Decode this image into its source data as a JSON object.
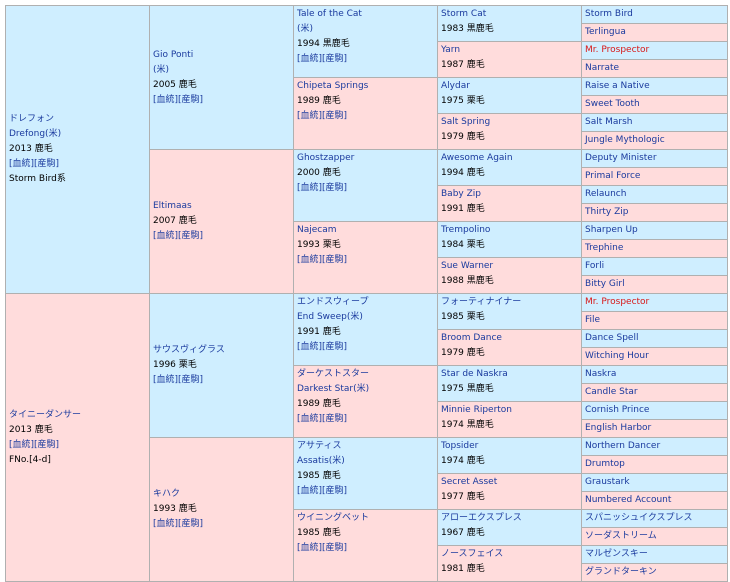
{
  "gen1": {
    "sire": {
      "name": "ドレフォン",
      "en": "Drefong(米)",
      "year": "2013 鹿毛",
      "links": [
        "[血統]",
        "[産駒]"
      ],
      "line": "Storm Bird系"
    },
    "dam": {
      "name": "タイニーダンサー",
      "year": "2013 鹿毛",
      "links": [
        "[血統]",
        "[産駒]"
      ],
      "line": "FNo.[4-d]"
    }
  },
  "gen2": [
    {
      "name": "Gio Ponti",
      "en": "(米)",
      "year": "2005 鹿毛",
      "links": [
        "[血統]",
        "[産駒]"
      ]
    },
    {
      "name": "Eltimaas",
      "year": "2007 鹿毛",
      "links": [
        "[血統]",
        "[産駒]"
      ]
    },
    {
      "name": "サウスヴィグラス",
      "year": "1996 栗毛",
      "links": [
        "[血統]",
        "[産駒]"
      ]
    },
    {
      "name": "キハク",
      "year": "1993 鹿毛",
      "links": [
        "[血統]",
        "[産駒]"
      ]
    }
  ],
  "gen3": [
    {
      "name": "Tale of the Cat",
      "en": "(米)",
      "year": "1994 黒鹿毛",
      "links": [
        "[血統]",
        "[産駒]"
      ]
    },
    {
      "name": "Chipeta Springs",
      "year": "1989 鹿毛",
      "links": [
        "[血統]",
        "[産駒]"
      ]
    },
    {
      "name": "Ghostzapper",
      "year": "2000 鹿毛",
      "links": [
        "[血統]",
        "[産駒]"
      ]
    },
    {
      "name": "Najecam",
      "year": "1993 栗毛",
      "links": [
        "[血統]",
        "[産駒]"
      ]
    },
    {
      "name": "エンドスウィープ",
      "en": "End Sweep(米)",
      "year": "1991 鹿毛",
      "links": [
        "[血統]",
        "[産駒]"
      ]
    },
    {
      "name": "ダーケストスター",
      "en": "Darkest Star(米)",
      "year": "1989 鹿毛",
      "links": [
        "[血統]",
        "[産駒]"
      ]
    },
    {
      "name": "アサティス",
      "en": "Assatis(米)",
      "year": "1985 鹿毛",
      "links": [
        "[血統]",
        "[産駒]"
      ]
    },
    {
      "name": "ウイニングベット",
      "year": "1985 鹿毛",
      "links": [
        "[血統]",
        "[産駒]"
      ]
    }
  ],
  "gen4": [
    {
      "name": "Storm Cat",
      "year": "1983 黒鹿毛"
    },
    {
      "name": "Yarn",
      "year": "1987 鹿毛"
    },
    {
      "name": "Alydar",
      "year": "1975 栗毛"
    },
    {
      "name": "Salt Spring",
      "year": "1979 鹿毛"
    },
    {
      "name": "Awesome Again",
      "year": "1994 鹿毛"
    },
    {
      "name": "Baby Zip",
      "year": "1991 鹿毛"
    },
    {
      "name": "Trempolino",
      "year": "1984 栗毛"
    },
    {
      "name": "Sue Warner",
      "year": "1988 黒鹿毛"
    },
    {
      "name": "フォーティナイナー",
      "year": "1985 栗毛"
    },
    {
      "name": "Broom Dance",
      "year": "1979 鹿毛"
    },
    {
      "name": "Star de Naskra",
      "year": "1975 黒鹿毛"
    },
    {
      "name": "Minnie Riperton",
      "year": "1974 黒鹿毛"
    },
    {
      "name": "Topsider",
      "year": "1974 鹿毛"
    },
    {
      "name": "Secret Asset",
      "year": "1977 鹿毛"
    },
    {
      "name": "アローエクスプレス",
      "year": "1967 鹿毛"
    },
    {
      "name": "ノースフェイス",
      "year": "1981 鹿毛"
    }
  ],
  "gen5": [
    {
      "name": "Storm Bird"
    },
    {
      "name": "Terlingua"
    },
    {
      "name": "Mr. Prospector",
      "highlight": true
    },
    {
      "name": "Narrate"
    },
    {
      "name": "Raise a Native"
    },
    {
      "name": "Sweet Tooth"
    },
    {
      "name": "Salt Marsh"
    },
    {
      "name": "Jungle Mythologic"
    },
    {
      "name": "Deputy Minister"
    },
    {
      "name": "Primal Force"
    },
    {
      "name": "Relaunch"
    },
    {
      "name": "Thirty Zip"
    },
    {
      "name": "Sharpen Up"
    },
    {
      "name": "Trephine"
    },
    {
      "name": "Forli"
    },
    {
      "name": "Bitty Girl"
    },
    {
      "name": "Mr. Prospector",
      "highlight": true
    },
    {
      "name": "File"
    },
    {
      "name": "Dance Spell"
    },
    {
      "name": "Witching Hour"
    },
    {
      "name": "Naskra"
    },
    {
      "name": "Candle Star"
    },
    {
      "name": "Cornish Prince"
    },
    {
      "name": "English Harbor"
    },
    {
      "name": "Northern Dancer"
    },
    {
      "name": "Drumtop"
    },
    {
      "name": "Graustark"
    },
    {
      "name": "Numbered Account"
    },
    {
      "name": "スパニッシュイクスプレス"
    },
    {
      "name": "ソーダストリーム"
    },
    {
      "name": "マルゼンスキー"
    },
    {
      "name": "グランドターキン"
    }
  ],
  "colors": {
    "male": "#cfeeff",
    "female": "#ffdcdc",
    "link": "#1a3a9e",
    "highlight": "#d81818",
    "border": "#b0b0b0"
  }
}
